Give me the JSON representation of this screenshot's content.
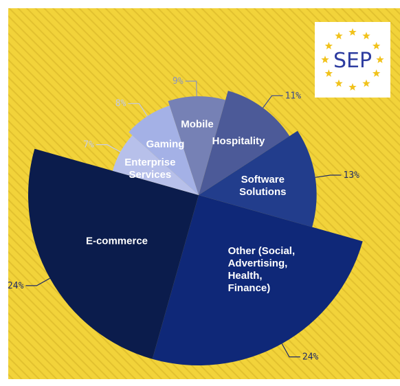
{
  "chart_data": {
    "type": "pie",
    "variant": "variable-radius",
    "categories": [
      "Mobile",
      "Hospitality",
      "Software Solutions",
      "Other (Social, Advertising, Health, Finance)",
      "E-commerce",
      "Enterprise Services",
      "Gaming"
    ],
    "values": [
      9,
      11,
      13,
      24,
      24,
      7,
      8
    ],
    "value_labels": [
      "9%",
      "11%",
      "13%",
      "24%",
      "24%",
      "7%",
      "8%"
    ],
    "colors": [
      "#7681b5",
      "#4c5a98",
      "#223d8c",
      "#0f2878",
      "#0b1c4c",
      "#b7c0ea",
      "#a4b1e6"
    ],
    "title": "",
    "legend": "none"
  },
  "logo": {
    "text": "SEP",
    "text_color": "#2e3da0",
    "star_color": "#f1c21b"
  },
  "background": {
    "color": "#f2d33a",
    "stripe_color": "#e2c12f"
  }
}
